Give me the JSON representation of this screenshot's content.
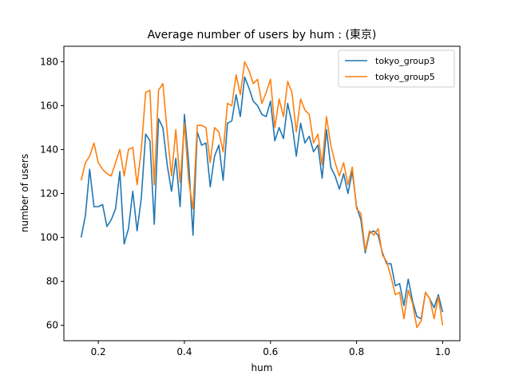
{
  "chart_data": {
    "type": "line",
    "title": "Average number of users by hum : (東京)",
    "xlabel": "hum",
    "ylabel": "number of users",
    "xlim": [
      0.12,
      1.04
    ],
    "ylim": [
      53,
      187
    ],
    "x_ticks": [
      0.2,
      0.4,
      0.6,
      0.8,
      1.0
    ],
    "x_tick_labels": [
      "0.2",
      "0.4",
      "0.6",
      "0.8",
      "1.0"
    ],
    "y_ticks": [
      60,
      80,
      100,
      120,
      140,
      160,
      180
    ],
    "y_tick_labels": [
      "60",
      "80",
      "100",
      "120",
      "140",
      "160",
      "180"
    ],
    "grid": false,
    "legend_position": "top-right",
    "x": [
      0.16,
      0.17,
      0.18,
      0.19,
      0.2,
      0.21,
      0.22,
      0.23,
      0.24,
      0.25,
      0.26,
      0.27,
      0.28,
      0.29,
      0.3,
      0.31,
      0.32,
      0.33,
      0.34,
      0.35,
      0.36,
      0.37,
      0.38,
      0.39,
      0.4,
      0.41,
      0.42,
      0.43,
      0.44,
      0.45,
      0.46,
      0.47,
      0.48,
      0.49,
      0.5,
      0.51,
      0.52,
      0.53,
      0.54,
      0.55,
      0.56,
      0.57,
      0.58,
      0.59,
      0.6,
      0.61,
      0.62,
      0.63,
      0.64,
      0.65,
      0.66,
      0.67,
      0.68,
      0.69,
      0.7,
      0.71,
      0.72,
      0.73,
      0.74,
      0.75,
      0.76,
      0.77,
      0.78,
      0.79,
      0.8,
      0.81,
      0.82,
      0.83,
      0.84,
      0.85,
      0.86,
      0.87,
      0.88,
      0.89,
      0.9,
      0.91,
      0.92,
      0.93,
      0.94,
      0.95,
      0.96,
      0.97,
      0.98,
      0.99,
      1.0
    ],
    "series": [
      {
        "name": "tokyo_group3",
        "color": "#1f77b4",
        "values": [
          100,
          110,
          131,
          114,
          114,
          115,
          105,
          108,
          113,
          130,
          97,
          104,
          121,
          103,
          118,
          147,
          144,
          106,
          154,
          150,
          133,
          121,
          136,
          114,
          156,
          134,
          101,
          148,
          142,
          143,
          123,
          137,
          142,
          126,
          152,
          153,
          165,
          155,
          173,
          168,
          162,
          160,
          156,
          155,
          162,
          144,
          150,
          145,
          161,
          152,
          137,
          152,
          143,
          146,
          139,
          142,
          127,
          149,
          132,
          128,
          122,
          129,
          120,
          130,
          114,
          108,
          93,
          102,
          103,
          101,
          93,
          88,
          88,
          78,
          79,
          69,
          81,
          71,
          64,
          63,
          75,
          72,
          68,
          74,
          66
        ]
      },
      {
        "name": "tokyo_group5",
        "color": "#ff7f0e",
        "values": [
          126,
          134,
          137,
          143,
          134,
          131,
          129,
          128,
          134,
          140,
          128,
          140,
          141,
          124,
          140,
          166,
          167,
          124,
          167,
          170,
          148,
          128,
          149,
          125,
          152,
          126,
          113,
          151,
          151,
          150,
          134,
          150,
          148,
          139,
          161,
          160,
          174,
          165,
          180,
          176,
          170,
          172,
          161,
          166,
          172,
          150,
          163,
          155,
          171,
          166,
          148,
          163,
          158,
          156,
          143,
          147,
          133,
          155,
          142,
          134,
          128,
          134,
          124,
          132,
          113,
          111,
          94,
          103,
          101,
          104,
          92,
          89,
          82,
          74,
          75,
          63,
          76,
          70,
          59,
          62,
          75,
          72,
          63,
          73,
          60
        ]
      }
    ]
  }
}
